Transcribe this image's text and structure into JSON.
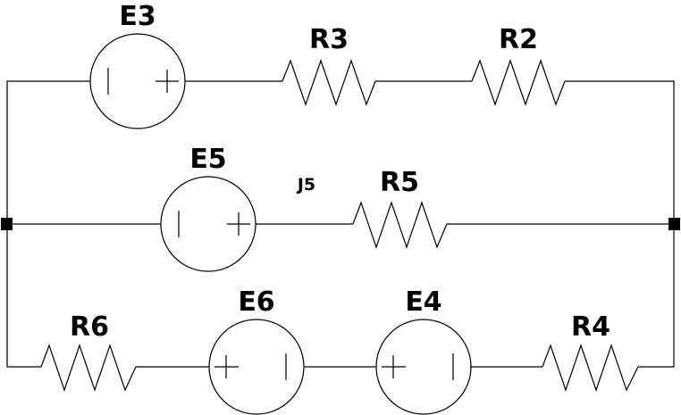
{
  "labels": {
    "E3": "E3",
    "R3": "R3",
    "R2": "R2",
    "E5": "E5",
    "J5": "J5",
    "R5": "R5",
    "R6": "R6",
    "E6": "E6",
    "E4": "E4",
    "R4": "R4"
  }
}
